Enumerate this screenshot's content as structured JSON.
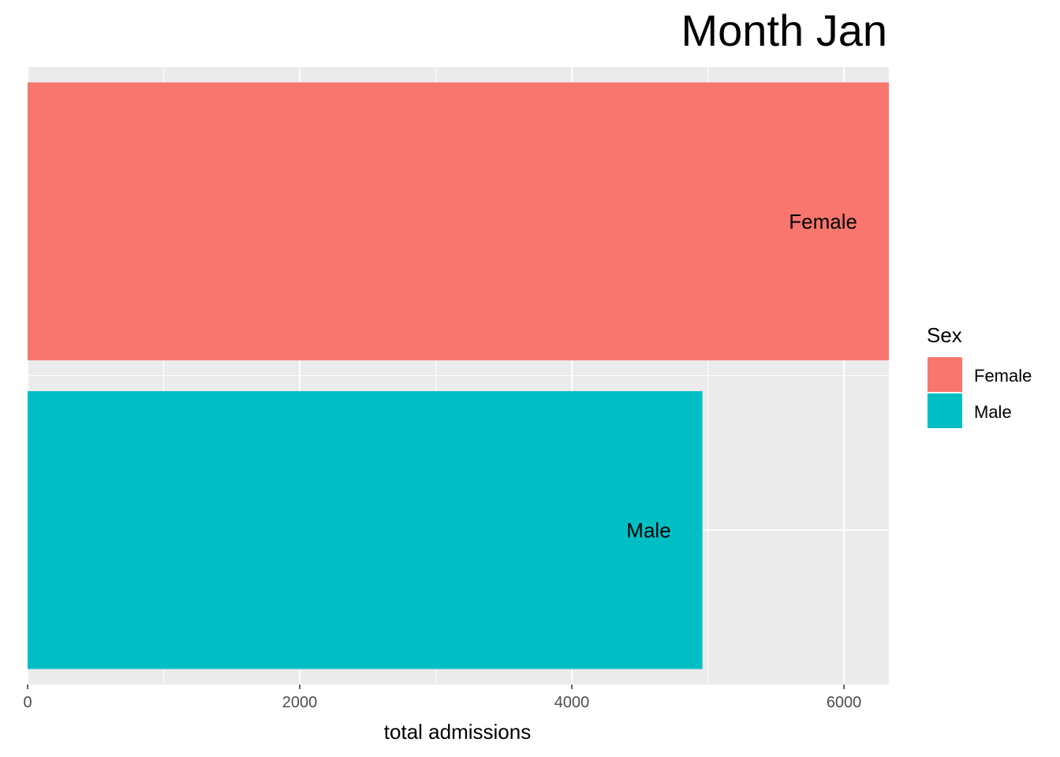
{
  "chart_data": {
    "type": "bar",
    "orientation": "horizontal",
    "title": "Month Jan",
    "xlabel": "total admissions",
    "ylabel": "",
    "xlim": [
      0,
      6330
    ],
    "x_ticks": [
      0,
      2000,
      4000,
      6000
    ],
    "grid": true,
    "categories": [
      "Female",
      "Male"
    ],
    "values": [
      6330,
      4960
    ],
    "colors": [
      "#F8766D",
      "#00BFC4"
    ],
    "panel_background": "#EBEBEB",
    "legend": {
      "title": "Sex",
      "placement": "right",
      "entries": [
        {
          "label": "Female",
          "color": "#F8766D"
        },
        {
          "label": "Male",
          "color": "#00BFC4"
        }
      ]
    }
  }
}
